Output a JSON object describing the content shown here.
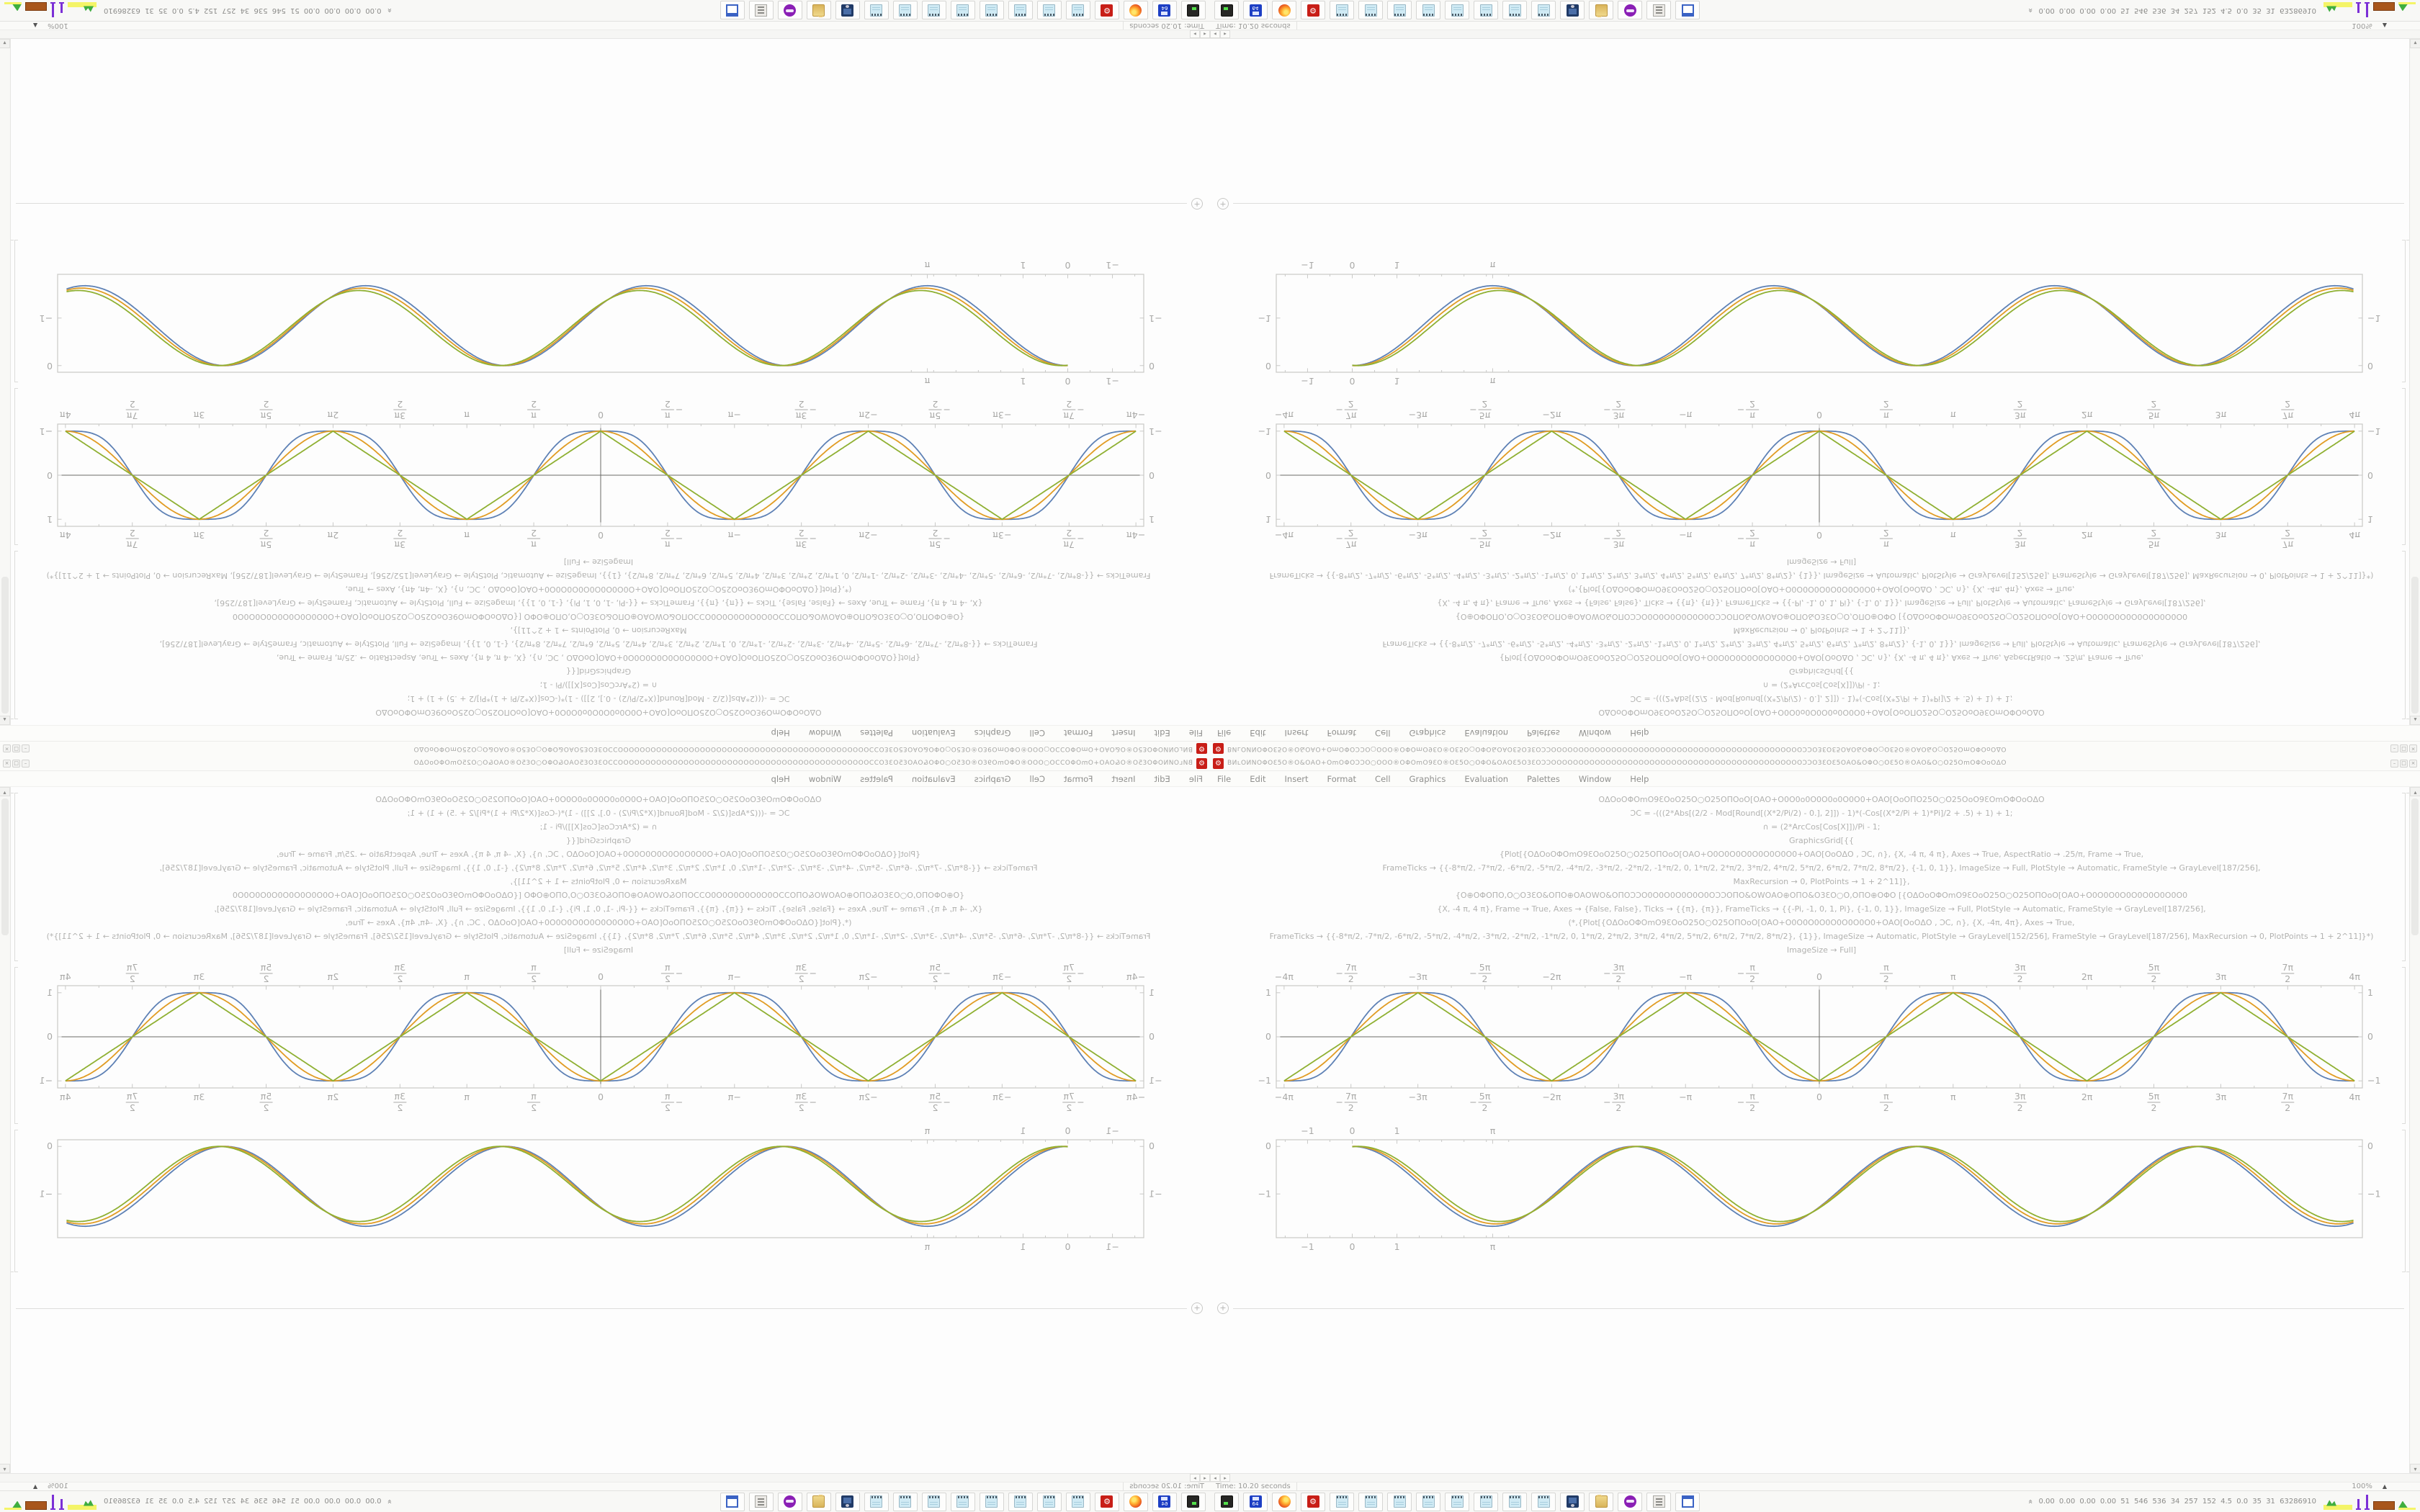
{
  "desktop": {
    "composition": "2x2 mirrored tiling of a single 1680x1050 desktop screenshot",
    "quadrants": [
      {
        "position": "top-left",
        "transform": "rotate-180"
      },
      {
        "position": "top-right",
        "transform": "flip-vertical"
      },
      {
        "position": "bottom-left",
        "transform": "flip-horizontal"
      },
      {
        "position": "bottom-right",
        "transform": "none"
      }
    ]
  },
  "window": {
    "app_icon": "mathematica-icon",
    "title_garble": "ВИʟΟИNΟΦΟƐ5Ο®Ο&ΟΑΟ+ΟmΟΦΟƆϽΟ○ΟΟΟ®ΟΦΟmΟ9ƐΟ®ΟƐ5Ο○ΟΦΟ&ΟΑΟƐ5Ο3ƐΟƆϽΟΟΟΟΟΟΟΟΟΟΟΟΟΟΟΟΟΟΟΟΟΟΟΟΟΟΟΟΟΟΟΟΟΟΟΟΟΟΟΟΟΟΟΟΟΟƆϽΟ3ƐΟƐ5ΟΑΟ&ΟΦΟ○ΟƐ5Ο®ΟΑΟ&Ο○Ο25ΟmΟΦΟοΟΔΟ",
    "controls": [
      "–",
      "□",
      "×"
    ],
    "menu": [
      "File",
      "Edit",
      "Insert",
      "Format",
      "Cell",
      "Graphics",
      "Evaluation",
      "Palettes",
      "Window",
      "Help"
    ],
    "status_time": "Time: 10.20 seconds",
    "zoom_value": "100%",
    "zoom_arrow": "▲",
    "hscroll_left": "◂",
    "hscroll_right": "▸",
    "vscroll_up": "▴",
    "vscroll_down": "▾",
    "insert_plus": "+"
  },
  "notebook": {
    "code_lines": [
      "ΟΔΟοΟΦΟmΟ9ƐΟοΟ25Ο○Ο25ΟΠΟοΟ[ΟΑΟ+Ο0Ο0ο0Ο0Ο0ο0Ο0Ο0+ΟΑΟ[ΟοΟΠΟ25Ο○Ο25ΟοΟ9ƐΟmΟΦΟοΟΔΟ",
      "ƆC = -(((2*Abs[(2/2 - Mod[Round[(X*2/Pi/2) - 0.], 2]]) - 1)*(-Cos[(X*2/Pi + 1)*Pi]/2 + .5) + 1) + 1;",
      "∩ = (2*ArcCos[Cos[X]])/Pi - 1;",
      "GraphicsGrid[{{",
      "{Plot[{ΟΔΟοΟΦΟmΟ9ƐΟοΟ25Ο○Ο25ΟΠΟοΟ[ΟΑΟ+Ο0Ο0Ο0Ο0Ο0Ο0Ο0Ο0+ΟΑΟ[ΟοΟΔΟ , ƆC, ∩}, {X, -4 π, 4 π}, Axes → True, AspectRatio → .25/π, Frame → True,",
      "FrameTicks → {{-8*π/2, -7*π/2, -6*π/2, -5*π/2, -4*π/2, -3*π/2, -2*π/2, -1*π/2, 0, 1*π/2, 2*π/2, 3*π/2, 4*π/2, 5*π/2, 6*π/2, 7*π/2, 8*π/2}, {-1, 0, 1}}, ImageSize → Full, PlotStyle → Automatic, FrameStyle → GrayLevel[187/256],",
      "MaxRecursion → 0, PlotPoints → 1 + 2^11]},",
      "{Ο⊕ΟΦΟΠΟ,Ο○Ο3ƐΟ&ΟΠΟ⊕ΟΑΟWΟ&ΟΠΟƆϽΟ0Ο0Ο0Ο0Ο0Ο0ΟƆϽΟΠΟ&ΟWΟΑΟ⊕ΟΠΟ&Ο3ƐΟ○Ο,ΟΠΟ⊕ΟΦΟ   [{ΟΔΟοΟΦΟmΟ9ƐΟοΟ25Ο○Ο25ΟΠΟοΟ[ΟΑΟ+Ο0Ο0Ο0Ο0Ο0Ο0Ο0Ο0Ο0",
      "{X, -4 π, 4 π}, Frame → True, Axes → {False, False}, Ticks → {{π}, {π}}, FrameTicks → {{-Pi, -1, 0, 1, Pi}, {-1, 0, 1}}, ImageSize → Full, PlotStyle → Automatic, FrameStyle → GrayLevel[187/256],",
      "(*,{Plot[{ΟΔΟοΟΦΟmΟ9ƐΟοΟ25Ο○Ο25ΟΠΟοΟ[ΟΑΟ+Ο0Ο0Ο0Ο0Ο0Ο0Ο0Ο0+ΟΑΟ[ΟοΟΔΟ , ƆC, ∩}, {X, -4π, 4π}, Axes → True,",
      "FrameTicks → {{-8*π/2, -7*π/2, -6*π/2, -5*π/2, -4*π/2, -3*π/2, -2*π/2, -1*π/2, 0, 1*π/2, 2*π/2, 3*π/2, 4*π/2, 5*π/2, 6*π/2, 7*π/2, 8*π/2}, {1}}, ImageSize → Automatic, PlotStyle → GrayLevel[152/256], FrameStyle → GrayLevel[187/256], MaxRecursion → 0, PlotPoints → 1 + 2^11]}*)",
      "ImageSize → Full]"
    ]
  },
  "chart_data": [
    {
      "type": "line",
      "title": "",
      "xlabel": "",
      "ylabel": "",
      "xlim": [
        -12.75,
        12.75
      ],
      "ylim": [
        -1.16,
        1.16
      ],
      "frame": true,
      "axes": true,
      "grid": false,
      "legend": "none",
      "frame_color": "#c9c9c7",
      "axis_color": "#6a6a68",
      "label_color": "#a9a9a7",
      "x_ticks": [
        {
          "v": -12.566,
          "label": "-4π"
        },
        {
          "v": -10.996,
          "label": "-7π/2"
        },
        {
          "v": -9.425,
          "label": "-3π"
        },
        {
          "v": -7.854,
          "label": "-5π/2"
        },
        {
          "v": -6.283,
          "label": "-2π"
        },
        {
          "v": -4.712,
          "label": "-3π/2"
        },
        {
          "v": -3.1416,
          "label": "-π"
        },
        {
          "v": -1.5708,
          "label": "-π/2"
        },
        {
          "v": 0,
          "label": "0"
        },
        {
          "v": 1.5708,
          "label": "π/2"
        },
        {
          "v": 3.1416,
          "label": "π"
        },
        {
          "v": 4.712,
          "label": "3π/2"
        },
        {
          "v": 6.283,
          "label": "2π"
        },
        {
          "v": 7.854,
          "label": "5π/2"
        },
        {
          "v": 9.425,
          "label": "3π"
        },
        {
          "v": 10.996,
          "label": "7π/2"
        },
        {
          "v": 12.566,
          "label": "4π"
        }
      ],
      "x_minor_step": 0.7854,
      "y_ticks": [
        {
          "v": -1,
          "label": "-1"
        },
        {
          "v": 0,
          "label": "0"
        },
        {
          "v": 1,
          "label": "1"
        }
      ],
      "series": [
        {
          "name": "smoothed-square-wave",
          "fn": "smoothsquare",
          "color": "#5e81b5",
          "domain": [
            -12.566,
            12.566
          ],
          "period": 6.283,
          "extrema": "±1 at multiples of π, troughs at even π, peaks at odd π"
        },
        {
          "name": "negative-cosine",
          "fn": "negcos",
          "color": "#e19c24",
          "domain": [
            -12.566,
            12.566
          ],
          "period": 6.283
        },
        {
          "name": "triangle-wave",
          "fn": "triangle",
          "color": "#8fb032",
          "domain": [
            -12.566,
            12.566
          ],
          "period": 6.283
        }
      ]
    },
    {
      "type": "line",
      "title": "",
      "xlabel": "",
      "ylabel": "",
      "xlim": [
        -1.7,
        22.6
      ],
      "ylim": [
        -1.92,
        0.14
      ],
      "frame": true,
      "axes": false,
      "grid": false,
      "legend": "none",
      "frame_color": "#c9c9c7",
      "axis_color": "#6a6a68",
      "label_color": "#a9a9a7",
      "x_ticks": [
        {
          "v": -1,
          "label": "-1"
        },
        {
          "v": 0,
          "label": "0"
        },
        {
          "v": 1,
          "label": "1"
        },
        {
          "v": 3.1416,
          "label": "π"
        }
      ],
      "x_minor_step": 0.5,
      "x_minor_max": 3.5,
      "y_ticks": [
        {
          "v": 0,
          "label": "0"
        },
        {
          "v": -1,
          "label": "-1"
        }
      ],
      "series": [
        {
          "name": "cosine-dip-blue",
          "fn": "dip1",
          "color": "#5e81b5",
          "domain": [
            0,
            22.4
          ],
          "min": -1.68,
          "start": [
            0,
            0
          ],
          "period": 6.283
        },
        {
          "name": "cosine-dip-orange",
          "fn": "dip2",
          "color": "#e19c24",
          "domain": [
            0,
            22.4
          ],
          "min": -1.63,
          "period": 6.283
        },
        {
          "name": "cosine-dip-green",
          "fn": "dip3",
          "color": "#8fb032",
          "domain": [
            0,
            22.4
          ],
          "min": -1.58,
          "period": 6.283
        }
      ]
    }
  ],
  "taskbar": {
    "chevron": "«",
    "buttons": [
      {
        "icon": "terminal-icon"
      },
      {
        "icon": "floppy-64-icon",
        "label": "64"
      },
      {
        "icon": "firefox-icon"
      },
      {
        "icon": "mathematica-icon",
        "glyph": "⚙"
      },
      {
        "icon": "notepad-icon"
      },
      {
        "icon": "notepad-icon"
      },
      {
        "icon": "notepad-icon"
      },
      {
        "icon": "notepad-icon"
      },
      {
        "icon": "notepad-icon"
      },
      {
        "icon": "notepad-icon"
      },
      {
        "icon": "notepad-icon"
      },
      {
        "icon": "notepad-icon"
      },
      {
        "icon": "screen-capture-icon"
      },
      {
        "icon": "folder-icon"
      },
      {
        "icon": "mask-icon"
      },
      {
        "icon": "printer-icon"
      },
      {
        "icon": "window-icon"
      }
    ],
    "stats_text": "0.00 0.00 0.00 0.00 51 546 536 34 257 152 4.5 0.0 35 31 63286910",
    "monitors": [
      "net-graph",
      "cpu-spike-small",
      "cpu-spike-tall",
      "memory-block",
      "load-graph"
    ],
    "monitor_colors": {
      "net": "#f4f468",
      "cpu": "#7b2fd6",
      "memory": "#a8561c",
      "load": "#3fae3f"
    }
  },
  "ui_colors": {
    "chrome_bg": "#f8f8f6",
    "notebook_bg": "#fdfdfd",
    "border": "#e2e2e0",
    "code_text": "#b2b2b0",
    "menu_text": "#8f8f8d",
    "mathematica_red": "#c81e17",
    "plot_blue": "#5e81b5",
    "plot_orange": "#e19c24",
    "plot_green": "#8fb032"
  }
}
